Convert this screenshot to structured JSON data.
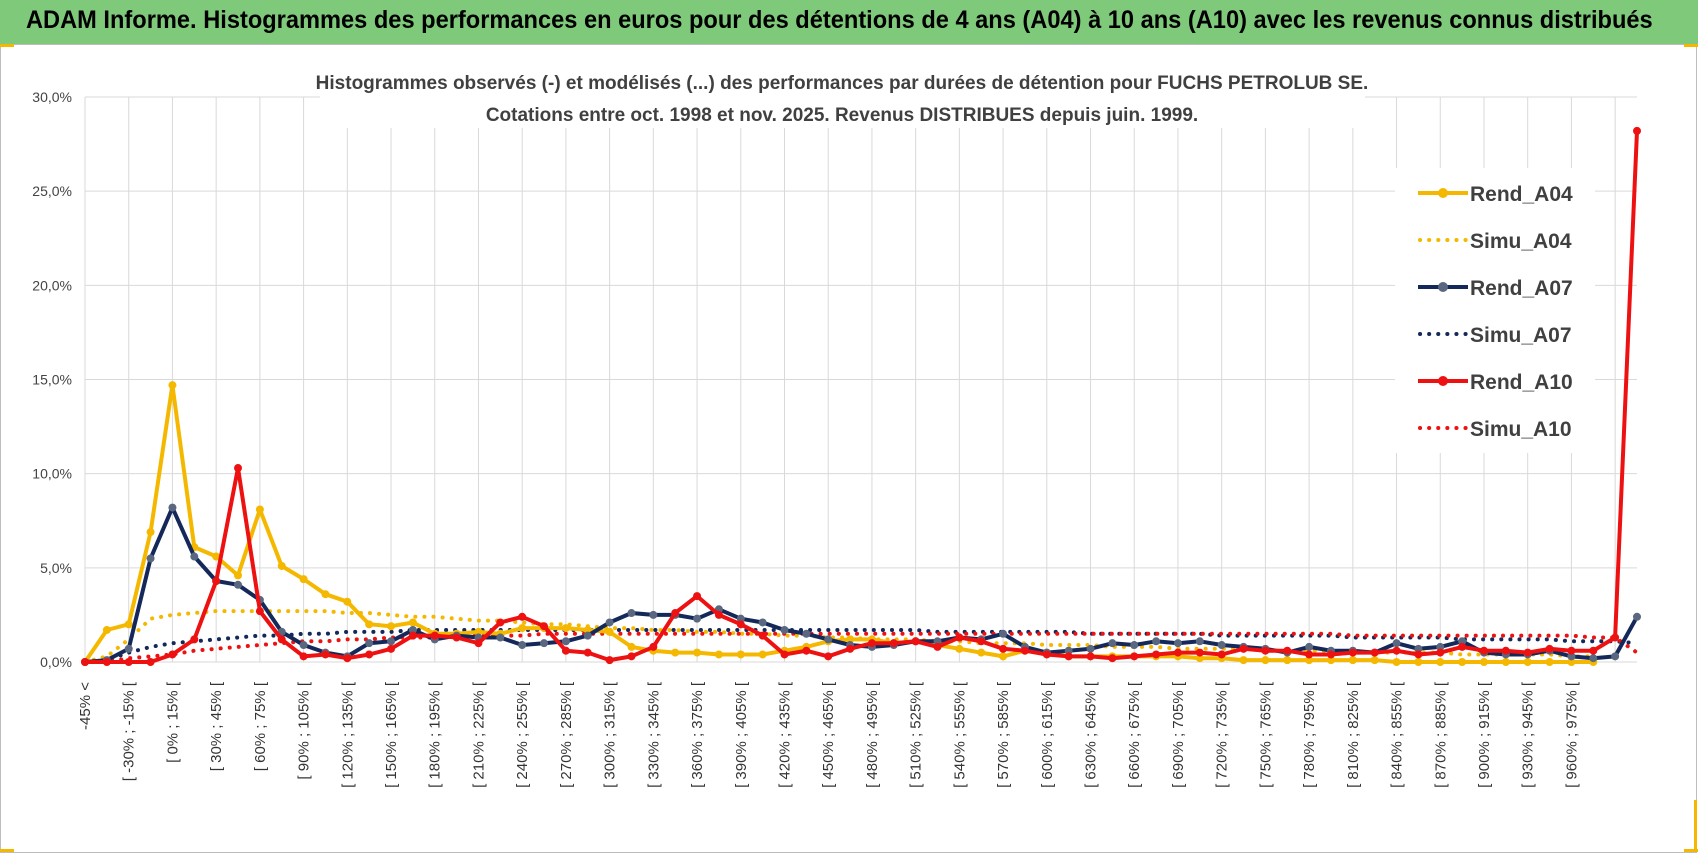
{
  "banner": {
    "title": "ADAM Informe. Histogrammes des performances en euros pour des détentions de 4 ans (A04) à 10 ans (A10) avec les revenus connus distribués"
  },
  "colors": {
    "banner": "#7fc97a",
    "a04": "#f5b800",
    "a07": "#14285a",
    "a07_marker": "#5a6780",
    "a10": "#ee1111",
    "grid": "#d9d9d9"
  },
  "chart_data": {
    "type": "line",
    "title": [
      "Histogrammes observés (-) et modélisés (...) des performances par durées de détention pour FUCHS PETROLUB SE.",
      "Cotations entre oct. 1998 et nov. 2025.  Revenus DISTRIBUES depuis juin. 1999."
    ],
    "xlabel": "",
    "ylabel": "",
    "ylim": [
      0,
      30
    ],
    "yticks": [
      "0,0%",
      "5,0%",
      "10,0%",
      "15,0%",
      "20,0%",
      "25,0%",
      "30,0%"
    ],
    "legend_position": "top-right",
    "x_tick_labels": [
      "-45% <",
      "[ -30% ; -15% [",
      "[ 0% ; 15% [",
      "[ 30% ; 45% [",
      "[ 60% ; 75% [",
      "[ 90% ; 105% [",
      "[ 120% ; 135% [",
      "[ 150% ; 165% [",
      "[ 180% ; 195% [",
      "[ 210% ; 225% [",
      "[ 240% ; 255% [",
      "[ 270% ; 285% [",
      "[ 300% ; 315% [",
      "[ 330% ; 345% [",
      "[ 360% ; 375% [",
      "[ 390% ; 405% [",
      "[ 420% ; 435% [",
      "[ 450% ; 465% [",
      "[ 480% ; 495% [",
      "[ 510% ; 525% [",
      "[ 540% ; 555% [",
      "[ 570% ; 585% [",
      "[ 600% ; 615% [",
      "[ 630% ; 645% [",
      "[ 660% ; 675% [",
      "[ 690% ; 705% [",
      "[ 720% ; 735% [",
      "[ 750% ; 765% [",
      "[ 780% ; 795% [",
      "[ 810% ; 825% [",
      "[ 840% ; 855% [",
      "[ 870% ; 885% [",
      "[ 900% ; 915% [",
      "[ 930% ; 945% [",
      "[ 960% ; 975% ["
    ],
    "series": [
      {
        "name": "Rend_A04",
        "style": "solid",
        "color": "#f5b800",
        "values": [
          0.0,
          1.7,
          2.0,
          6.9,
          14.7,
          6.1,
          5.6,
          4.6,
          8.1,
          5.1,
          4.4,
          3.6,
          3.2,
          2.0,
          1.9,
          2.1,
          1.5,
          1.5,
          1.6,
          1.5,
          1.8,
          1.8,
          1.8,
          1.7,
          1.6,
          0.8,
          0.6,
          0.5,
          0.5,
          0.4,
          0.4,
          0.4,
          0.6,
          0.8,
          1.1,
          1.2,
          1.2,
          1.0,
          1.1,
          0.9,
          0.7,
          0.5,
          0.3,
          0.6,
          0.5,
          0.3,
          0.3,
          0.3,
          0.3,
          0.3,
          0.3,
          0.2,
          0.2,
          0.1,
          0.1,
          0.1,
          0.1,
          0.1,
          0.1,
          0.1,
          0.0,
          0.0,
          0.0,
          0.0,
          0.0,
          0.0,
          0.0,
          0.0,
          0.0,
          0.0
        ]
      },
      {
        "name": "Simu_A04",
        "style": "dotted",
        "color": "#f5b800",
        "values": [
          0.0,
          0.3,
          1.2,
          2.3,
          2.5,
          2.6,
          2.7,
          2.7,
          2.7,
          2.7,
          2.7,
          2.7,
          2.6,
          2.6,
          2.5,
          2.4,
          2.4,
          2.3,
          2.2,
          2.2,
          2.1,
          2.0,
          2.0,
          1.9,
          1.8,
          1.8,
          1.7,
          1.7,
          1.6,
          1.6,
          1.5,
          1.5,
          1.4,
          1.4,
          1.3,
          1.3,
          1.2,
          1.2,
          1.2,
          1.1,
          1.1,
          1.0,
          1.0,
          1.0,
          0.9,
          0.9,
          0.9,
          0.8,
          0.8,
          0.8,
          0.7,
          0.7,
          0.7,
          0.7,
          0.6,
          0.6,
          0.6,
          0.6,
          0.5,
          0.5,
          0.5,
          0.5,
          0.5,
          0.4,
          0.4,
          0.4,
          0.4,
          0.4,
          0.3,
          0.3
        ]
      },
      {
        "name": "Rend_A07",
        "style": "solid",
        "color": "#14285a",
        "values": [
          0.0,
          0.1,
          0.7,
          5.5,
          8.2,
          5.6,
          4.3,
          4.1,
          3.3,
          1.6,
          0.9,
          0.5,
          0.3,
          1.0,
          1.1,
          1.7,
          1.2,
          1.4,
          1.3,
          1.3,
          0.9,
          1.0,
          1.1,
          1.4,
          2.1,
          2.6,
          2.5,
          2.5,
          2.3,
          2.8,
          2.3,
          2.1,
          1.7,
          1.5,
          1.2,
          0.9,
          0.8,
          0.9,
          1.1,
          1.1,
          1.3,
          1.2,
          1.5,
          0.8,
          0.5,
          0.6,
          0.7,
          1.0,
          0.9,
          1.1,
          1.0,
          1.1,
          0.9,
          0.8,
          0.7,
          0.5,
          0.8,
          0.6,
          0.6,
          0.5,
          1.0,
          0.7,
          0.8,
          1.1,
          0.5,
          0.4,
          0.4,
          0.6,
          0.3,
          0.2,
          0.3,
          2.4
        ]
      },
      {
        "name": "Simu_A07",
        "style": "dotted",
        "color": "#14285a",
        "values": [
          0.0,
          0.1,
          0.5,
          0.8,
          1.0,
          1.1,
          1.2,
          1.3,
          1.4,
          1.4,
          1.5,
          1.5,
          1.6,
          1.6,
          1.6,
          1.7,
          1.7,
          1.7,
          1.7,
          1.7,
          1.7,
          1.7,
          1.7,
          1.7,
          1.7,
          1.7,
          1.7,
          1.7,
          1.7,
          1.7,
          1.7,
          1.7,
          1.7,
          1.7,
          1.7,
          1.7,
          1.7,
          1.7,
          1.7,
          1.6,
          1.6,
          1.6,
          1.6,
          1.6,
          1.6,
          1.6,
          1.5,
          1.5,
          1.5,
          1.5,
          1.5,
          1.5,
          1.4,
          1.4,
          1.4,
          1.4,
          1.4,
          1.4,
          1.3,
          1.3,
          1.3,
          1.3,
          1.3,
          1.2,
          1.2,
          1.2,
          1.2,
          1.2,
          1.1,
          1.1,
          1.1,
          1.0
        ]
      },
      {
        "name": "Rend_A10",
        "style": "solid",
        "color": "#ee1111",
        "values": [
          0.0,
          0.0,
          0.0,
          0.0,
          0.4,
          1.2,
          4.3,
          10.3,
          2.7,
          1.2,
          0.3,
          0.4,
          0.2,
          0.4,
          0.7,
          1.4,
          1.4,
          1.3,
          1.0,
          2.1,
          2.4,
          1.9,
          0.6,
          0.5,
          0.1,
          0.3,
          0.8,
          2.6,
          3.5,
          2.5,
          2.0,
          1.4,
          0.4,
          0.6,
          0.3,
          0.7,
          1.0,
          1.0,
          1.1,
          0.8,
          1.3,
          1.1,
          0.7,
          0.6,
          0.4,
          0.3,
          0.3,
          0.2,
          0.3,
          0.4,
          0.5,
          0.5,
          0.4,
          0.7,
          0.6,
          0.6,
          0.4,
          0.4,
          0.5,
          0.5,
          0.6,
          0.4,
          0.5,
          0.8,
          0.6,
          0.6,
          0.5,
          0.7,
          0.6,
          0.6,
          1.3,
          28.2
        ]
      },
      {
        "name": "Simu_A10",
        "style": "dotted",
        "color": "#ee1111",
        "values": [
          0.0,
          0.0,
          0.2,
          0.3,
          0.4,
          0.6,
          0.7,
          0.8,
          0.9,
          1.0,
          1.1,
          1.1,
          1.2,
          1.2,
          1.3,
          1.3,
          1.3,
          1.4,
          1.4,
          1.4,
          1.4,
          1.5,
          1.5,
          1.5,
          1.5,
          1.5,
          1.5,
          1.5,
          1.5,
          1.5,
          1.5,
          1.5,
          1.5,
          1.5,
          1.5,
          1.5,
          1.5,
          1.5,
          1.5,
          1.5,
          1.5,
          1.5,
          1.5,
          1.5,
          1.5,
          1.5,
          1.5,
          1.5,
          1.5,
          1.5,
          1.5,
          1.5,
          1.5,
          1.5,
          1.5,
          1.5,
          1.5,
          1.5,
          1.4,
          1.4,
          1.4,
          1.4,
          1.4,
          1.4,
          1.4,
          1.4,
          1.4,
          1.4,
          1.4,
          1.3,
          1.3,
          0.5
        ]
      }
    ]
  }
}
